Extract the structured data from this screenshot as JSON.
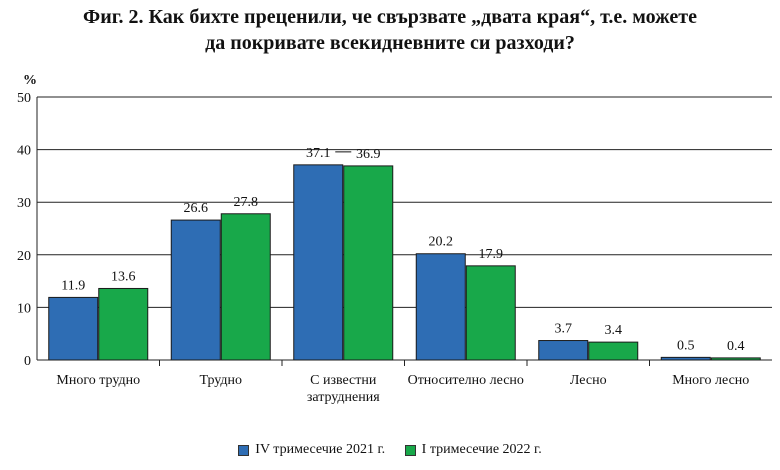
{
  "title_line1": "Фиг. 2. Как бихте преценили, че свързвате „двата края“, т.е. можете",
  "title_line2": "да покривате всекидневните си разходи?",
  "colors": {
    "series1": "#2e6db4",
    "series2": "#18a84a"
  },
  "chart_data": {
    "type": "bar",
    "title": "Фиг. 2. Как бихте преценили, че свързвате „двата края“, т.е. можете да покривате всекидневните си разходи?",
    "ylabel": "%",
    "ylim": [
      0,
      50
    ],
    "yticks": [
      0,
      10,
      20,
      30,
      40,
      50
    ],
    "grid": true,
    "legend": "bottom",
    "categories": [
      [
        "Много трудно"
      ],
      [
        "Трудно"
      ],
      [
        "С известни",
        "затруднения"
      ],
      [
        "Относително лесно"
      ],
      [
        "Лесно"
      ],
      [
        "Много лесно"
      ]
    ],
    "series": [
      {
        "name": "IV тримесечие 2021 г.",
        "values": [
          11.9,
          26.6,
          37.1,
          20.2,
          3.7,
          0.5
        ]
      },
      {
        "name": "I тримесечие 2022 г.",
        "values": [
          13.6,
          27.8,
          36.9,
          17.9,
          3.4,
          0.4
        ]
      }
    ]
  }
}
